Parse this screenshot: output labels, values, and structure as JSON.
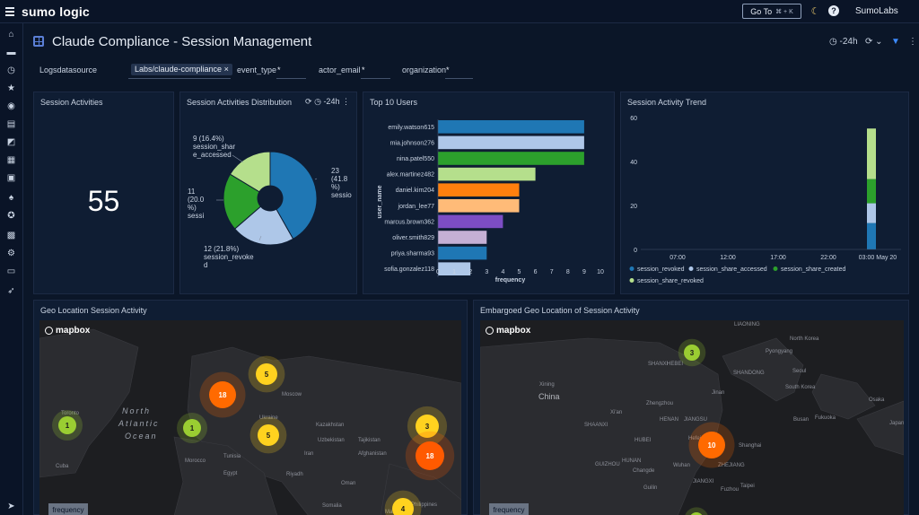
{
  "app": {
    "brand": "sumo logic",
    "goto_label": "Go To",
    "goto_shortcut": "⌘ + K",
    "user": "SumoLabs"
  },
  "dashboard": {
    "title": "Claude Compliance - Session Management",
    "time_range": "-24h"
  },
  "filters": {
    "logsdatasource_label": "Logsdatasource",
    "logsdatasource_value": "Labs/claude-compliance",
    "event_type_label": "event_type",
    "event_type_value": "*",
    "actor_email_label": "actor_email",
    "actor_email_value": "*",
    "organization_label": "organization",
    "organization_value": "*"
  },
  "panels": {
    "session_activities": {
      "title": "Session Activities",
      "value": "55"
    },
    "distribution": {
      "title": "Session Activities Distribution",
      "time_range": "-24h"
    },
    "top_users": {
      "title": "Top 10 Users"
    },
    "trend": {
      "title": "Session Activity Trend"
    },
    "geo": {
      "title": "Geo Location Session Activity",
      "freq_label": "frequency"
    },
    "embargoed": {
      "title": "Embargoed Geo Location of Session Activity",
      "freq_label": "frequency"
    }
  },
  "chart_data": [
    {
      "type": "pie",
      "title": "Session Activities Distribution",
      "slices": [
        {
          "label": "23 (41.8 %) sessio",
          "value": 23,
          "color": "#1f77b4"
        },
        {
          "label": "12 (21.8%) session_revoked",
          "value": 12,
          "color": "#aec7e8"
        },
        {
          "label": "11 (20.0 %) sessi",
          "value": 11,
          "color": "#2ca02c"
        },
        {
          "label": "9 (16.4%) session_share_accessed",
          "value": 9,
          "color": "#b5df8c"
        }
      ]
    },
    {
      "type": "bar",
      "title": "Top 10 Users",
      "ylabel": "user_name",
      "xlabel": "frequency",
      "xlim": [
        0,
        10
      ],
      "xticks": [
        "0",
        "1",
        "2",
        "3",
        "4",
        "5",
        "6",
        "7",
        "8",
        "9",
        "10"
      ],
      "categories": [
        "emily.watson615",
        "mia.johnson276",
        "nina.patel550",
        "alex.martinez482",
        "daniel.kim204",
        "jordan_lee77",
        "marcus.brown362",
        "oliver.smith829",
        "priya.sharma93",
        "sofia.gonzalez118"
      ],
      "values": [
        9,
        9,
        9,
        6,
        5,
        5,
        4,
        3,
        3,
        2
      ],
      "colors": [
        "#1f77b4",
        "#aec7e8",
        "#2ca02c",
        "#b5df8c",
        "#ff7f0e",
        "#ffbb78",
        "#7c4dc4",
        "#c5b0d5",
        "#1f77b4",
        "#aec7e8"
      ]
    },
    {
      "type": "bar",
      "title": "Session Activity Trend",
      "stacked": true,
      "ylim": [
        0,
        60
      ],
      "yticks": [
        "0",
        "20",
        "40",
        "60"
      ],
      "categories": [
        "07:00",
        "12:00",
        "17:00",
        "22:00",
        "03:00 May 20"
      ],
      "series": [
        {
          "name": "session_revoked",
          "color": "#1f77b4",
          "values": [
            0,
            0,
            0,
            0,
            12
          ]
        },
        {
          "name": "session_share_accessed",
          "color": "#aec7e8",
          "values": [
            0,
            0,
            0,
            0,
            9
          ]
        },
        {
          "name": "session_share_created",
          "color": "#2ca02c",
          "values": [
            0,
            0,
            0,
            0,
            11
          ]
        },
        {
          "name": "session_share_revoked",
          "color": "#b5df8c",
          "values": [
            0,
            0,
            0,
            0,
            23
          ]
        }
      ]
    }
  ],
  "geo_map": {
    "labels": [
      "North",
      "Atlantic",
      "Ocean",
      "Toronto",
      "Cuba",
      "Morocco",
      "Tunisia",
      "Egypt",
      "Riyadh",
      "Oman",
      "Ukraine",
      "Moscow",
      "Kazakhstan",
      "Tajikistan",
      "Uzbekistan",
      "Afghanistan",
      "Iran",
      "Maldives",
      "Abidjan",
      "Kinshasa",
      "Philippines",
      "Malaysia",
      "Indonesia",
      "Somalia"
    ],
    "clusters": [
      {
        "value": "1",
        "color": "#9acd32"
      },
      {
        "value": "1",
        "color": "#9acd32"
      },
      {
        "value": "18",
        "color": "#ff6a00"
      },
      {
        "value": "5",
        "color": "#ffd21f"
      },
      {
        "value": "5",
        "color": "#ffd21f"
      },
      {
        "value": "3",
        "color": "#ffd21f"
      },
      {
        "value": "18",
        "color": "#ff5a00"
      },
      {
        "value": "4",
        "color": "#ffd21f"
      }
    ]
  },
  "embargo_map": {
    "labels": [
      "LIAONING",
      "North Korea",
      "Pyongyang",
      "Seoul",
      "South Korea",
      "Busan",
      "Fukuoka",
      "Osaka",
      "Japan",
      "SHANXI",
      "HEBEI",
      "SHANDONG",
      "Xining",
      "China",
      "Zhengzhou",
      "Xi'an",
      "HENAN",
      "JIANGSU",
      "Shanghai",
      "Hefei",
      "Wuhan",
      "ZHEJIANG",
      "Changde",
      "JIANGXI",
      "Guilin",
      "Fuzhou",
      "Taipei",
      "Jinan",
      "SHAANXI",
      "HUBEI",
      "HUNAN",
      "GUIZHOU"
    ],
    "clusters": [
      {
        "value": "3",
        "color": "#9acd32"
      },
      {
        "value": "10",
        "color": "#ff6a00"
      },
      {
        "value": "",
        "color": "#9acd32"
      }
    ]
  }
}
